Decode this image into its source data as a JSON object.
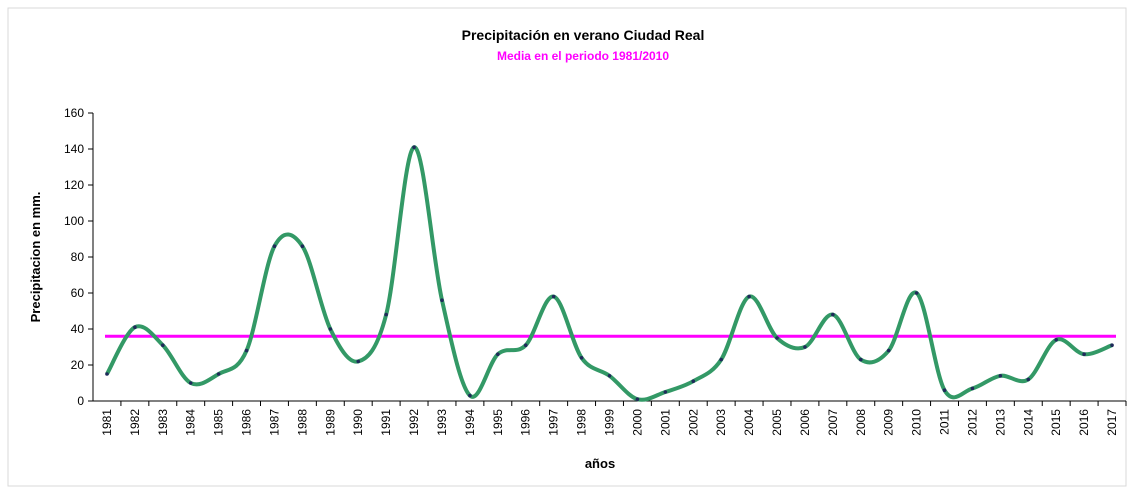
{
  "chart_data": {
    "type": "line",
    "title": "Precipitación en  verano Ciudad Real",
    "subtitle": "Media en el periodo 1981/2010",
    "subtitle_color": "#ff00ff",
    "x_label": "años",
    "y_label": "Precipitacion en mm.",
    "categories": [
      "1981",
      "1982",
      "1983",
      "1984",
      "1985",
      "1986",
      "1987",
      "1988",
      "1989",
      "1990",
      "1991",
      "1992",
      "1993",
      "1994",
      "1995",
      "1996",
      "1997",
      "1998",
      "1999",
      "2000",
      "2001",
      "2002",
      "2003",
      "2004",
      "2005",
      "2006",
      "2007",
      "2008",
      "2009",
      "2010",
      "2011",
      "2012",
      "2013",
      "2014",
      "2015",
      "2016",
      "2017"
    ],
    "series": [
      {
        "name": "Precipitación",
        "color": "#339966",
        "marker_color": "#1f2a5a",
        "values": [
          15,
          41,
          31,
          10,
          15,
          28,
          86,
          86,
          40,
          22,
          48,
          141,
          56,
          3,
          26,
          31,
          58,
          24,
          14,
          1,
          5,
          11,
          23,
          58,
          35,
          30,
          48,
          23,
          28,
          60,
          6,
          7,
          14,
          12,
          34,
          26,
          31
        ]
      }
    ],
    "mean_line": {
      "value": 36,
      "color": "#ff00ff"
    },
    "ylim": [
      0,
      160
    ],
    "yticks": [
      0,
      20,
      40,
      60,
      80,
      100,
      120,
      140,
      160
    ],
    "smooth": true
  }
}
